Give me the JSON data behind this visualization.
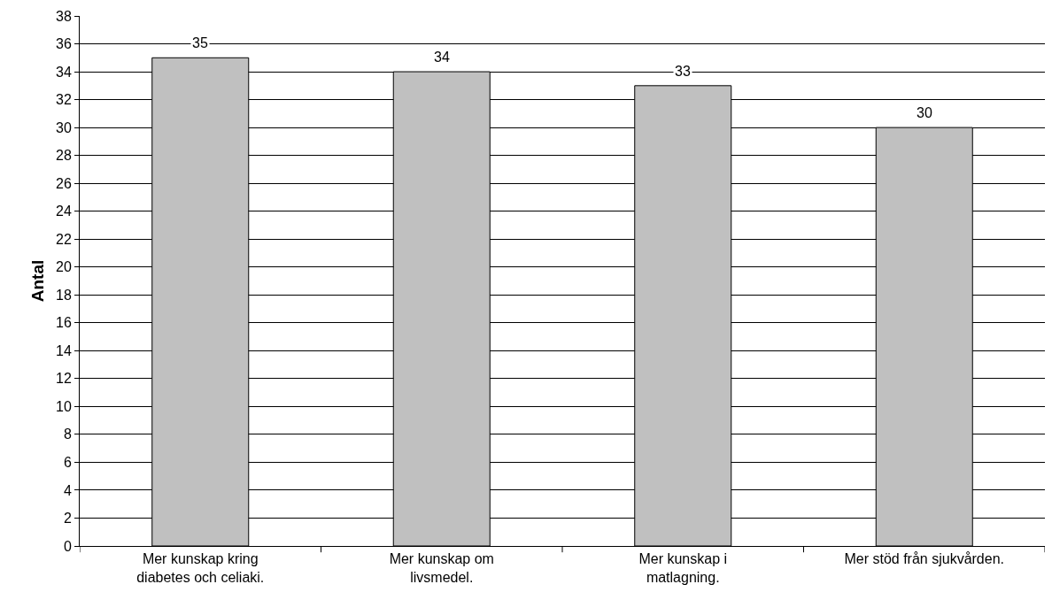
{
  "chart_data": {
    "type": "bar",
    "ylabel": "Antal",
    "categories": [
      "Mer kunskap kring\ndiabetes och celiaki.",
      "Mer kunskap om\nlivsmedel.",
      "Mer kunskap i\nmatlagning.",
      "Mer stöd från sjukvården."
    ],
    "values": [
      35,
      34,
      33,
      30
    ],
    "color": "#c0c0c0",
    "data_labels": true,
    "grid": "y",
    "ylim": [
      0,
      38
    ],
    "yticks": [
      0,
      2,
      4,
      6,
      8,
      10,
      12,
      14,
      16,
      18,
      20,
      22,
      24,
      26,
      28,
      30,
      32,
      34,
      36,
      38
    ]
  }
}
